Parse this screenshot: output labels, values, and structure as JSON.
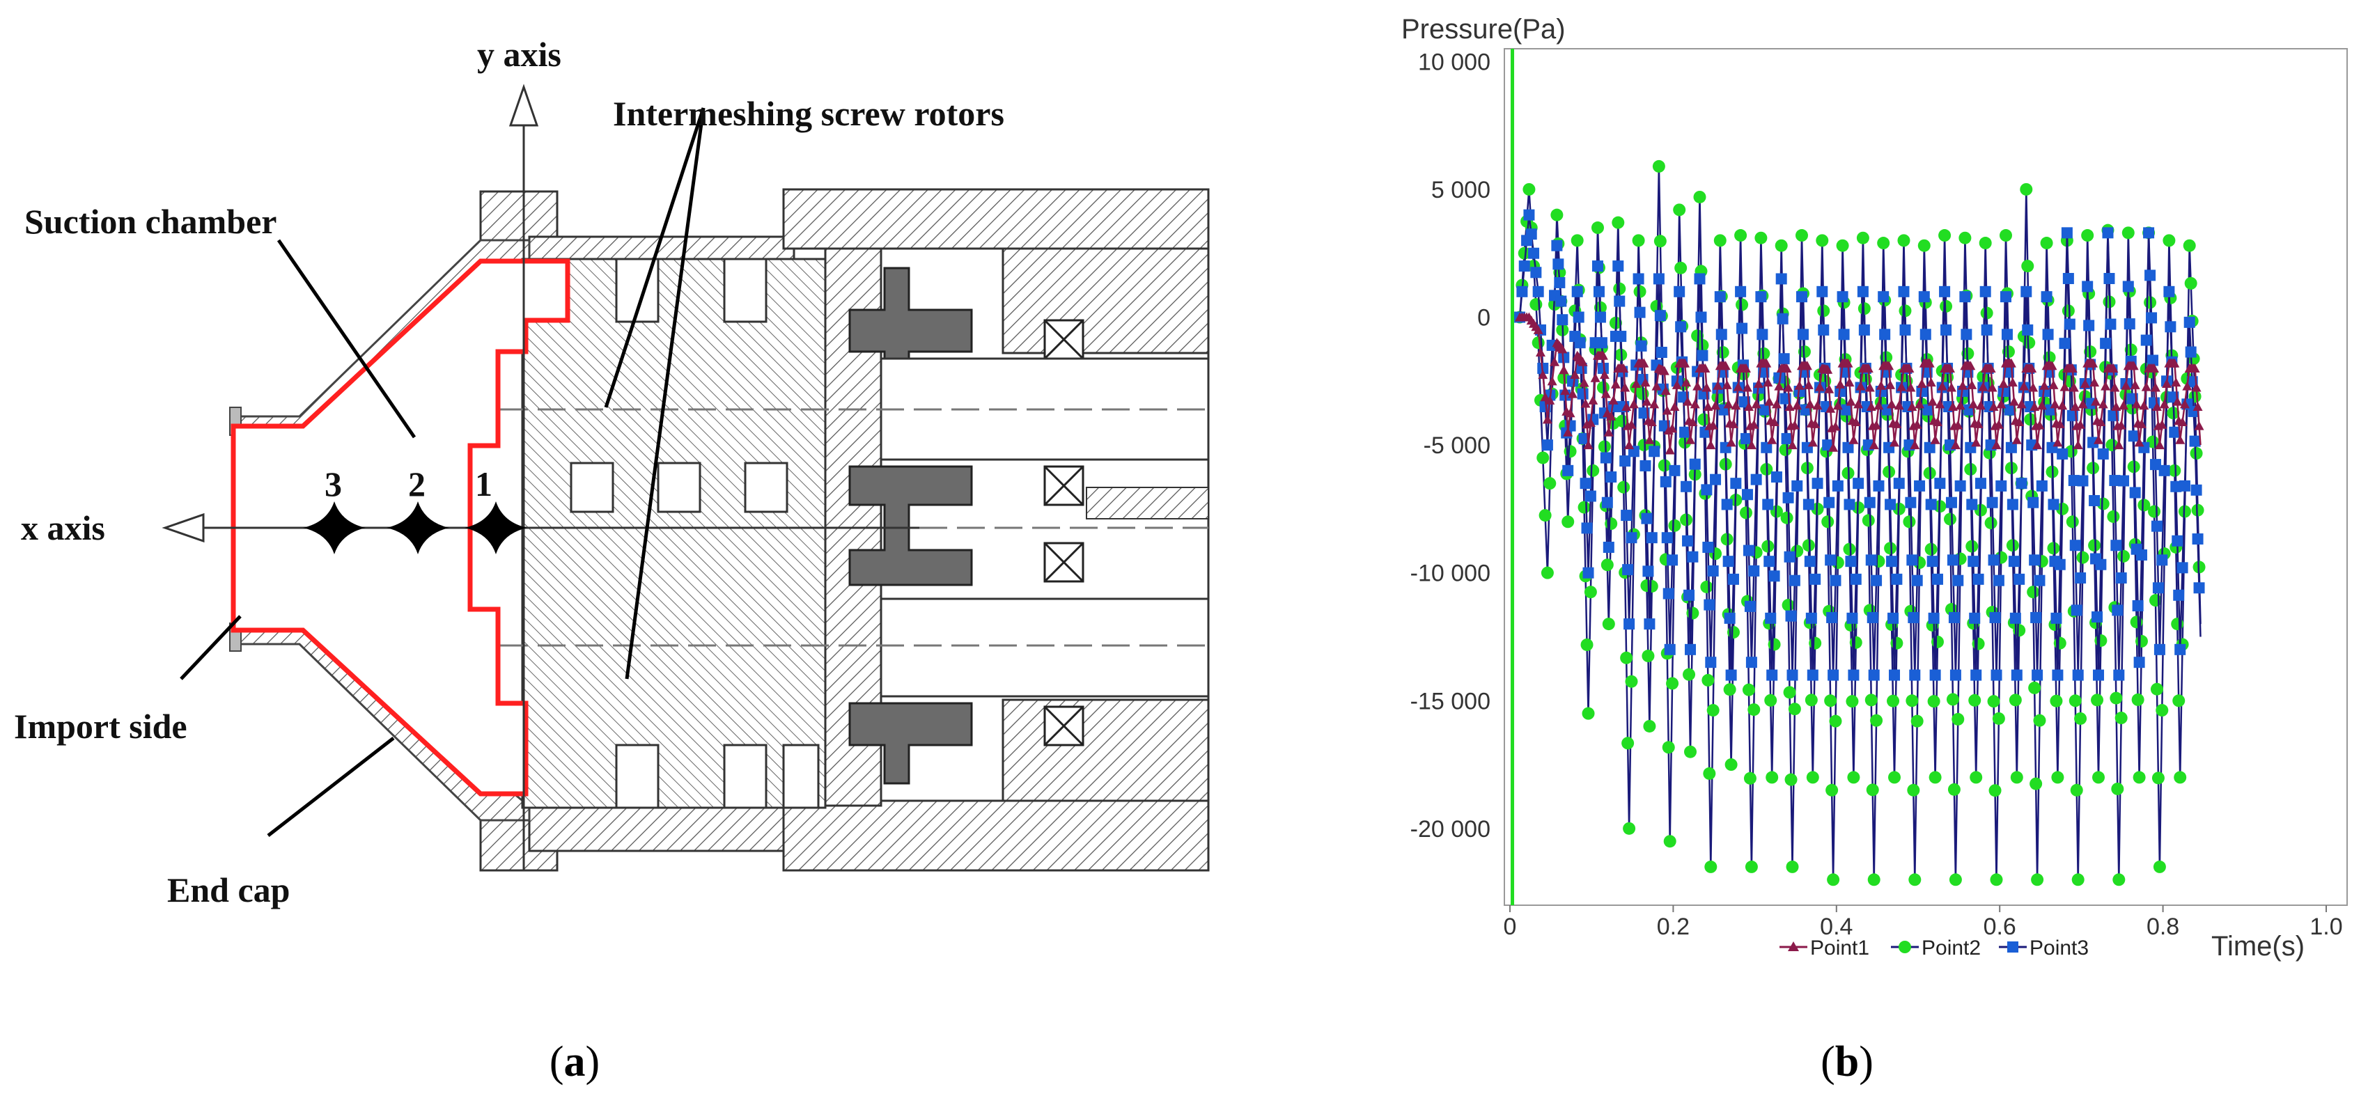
{
  "panel_a": {
    "caption_open": "(",
    "caption_letter": "a",
    "caption_close": ")",
    "labels": {
      "y_axis": "y axis",
      "x_axis": "x axis",
      "rotors": "Intermeshing screw rotors",
      "suction": "Suction chamber",
      "import": "Import side",
      "end_cap": "End cap"
    },
    "points": [
      "3",
      "2",
      "1"
    ]
  },
  "panel_b": {
    "caption_open": "(",
    "caption_letter": "b",
    "caption_close": ")"
  },
  "colors": {
    "outline_red": "#ff2020",
    "point1": "#8b1a4a",
    "point2": "#22dd22",
    "point3": "#1a5fd6",
    "navy": "#1a1a7a"
  },
  "chart_data": {
    "type": "line",
    "ylabel": "Pressure(Pa)",
    "xlabel": "Time(s)",
    "xlim": [
      0,
      1.0
    ],
    "ylim": [
      -23000,
      10500
    ],
    "xticks": [
      "0",
      "0.2",
      "0.4",
      "0.6",
      "0.8",
      "1.0"
    ],
    "yticks": [
      "10 000",
      "5 000",
      "0",
      "-5 000",
      "-10 000",
      "-15 000",
      "-20 000"
    ],
    "legend": [
      "Point1",
      "Point2",
      "Point3"
    ],
    "legend_position": "bottom",
    "cycle_x": [
      0.05,
      0.075,
      0.1,
      0.125,
      0.15,
      0.175,
      0.2,
      0.225,
      0.25,
      0.275,
      0.3,
      0.325,
      0.35,
      0.375,
      0.4,
      0.425,
      0.45,
      0.475,
      0.5,
      0.525,
      0.55,
      0.575,
      0.6,
      0.625,
      0.65,
      0.675,
      0.7,
      0.725,
      0.75,
      0.775,
      0.8,
      0.825,
      0.85
    ],
    "series": [
      {
        "name": "Point1",
        "min": [
          -4000,
          -4500,
          -5000,
          -4500,
          -5000,
          -4800,
          -5200,
          -4800,
          -5000,
          -4900,
          -5000,
          -4800,
          -5000,
          -4900,
          -5100,
          -4800,
          -5000,
          -4900,
          -5000,
          -4800,
          -5000,
          -4900,
          -5000,
          -4800,
          -5000,
          -4900,
          -5000,
          -4800,
          -5000,
          -4900,
          -5000,
          -4800,
          -5000
        ],
        "max": [
          0,
          -1000,
          -1500,
          -1500,
          -2000,
          -1800,
          -2000,
          -1800,
          -2000,
          -1900,
          -2000,
          -1800,
          -2000,
          -1900,
          -2000,
          -1800,
          -2000,
          -1900,
          -2000,
          -1800,
          -2000,
          -1900,
          -2000,
          -1800,
          -2000,
          -1900,
          -2000,
          -1800,
          -2000,
          -1900,
          -2000,
          -1800,
          -2000
        ]
      },
      {
        "name": "Point2",
        "min": [
          -10000,
          -8000,
          -15500,
          -12000,
          -20000,
          -16000,
          -20500,
          -17000,
          -21500,
          -17500,
          -21500,
          -18000,
          -21500,
          -18000,
          -22000,
          -18000,
          -22000,
          -18000,
          -22000,
          -18000,
          -22000,
          -18000,
          -22000,
          -18000,
          -22000,
          -18000,
          -22000,
          -18000,
          -22000,
          -18000,
          -21500,
          -18000,
          -12000
        ],
        "max": [
          5000,
          4000,
          3000,
          3500,
          3700,
          3000,
          5900,
          4200,
          4700,
          3000,
          3200,
          3100,
          2800,
          3200,
          3000,
          2800,
          3100,
          2900,
          3000,
          2800,
          3200,
          3100,
          2900,
          3200,
          5000,
          2900,
          3000,
          3200,
          3400,
          3300,
          3300,
          3000,
          2800
        ]
      },
      {
        "name": "Point3",
        "min": [
          -5000,
          -6000,
          -10000,
          -9000,
          -12000,
          -12000,
          -13000,
          -13000,
          -13500,
          -14000,
          -13500,
          -14000,
          -14000,
          -14000,
          -14000,
          -14000,
          -14000,
          -14000,
          -14000,
          -14000,
          -14000,
          -14000,
          -14000,
          -14000,
          -14000,
          -14000,
          -14000,
          -14000,
          -14000,
          -13500,
          -13000,
          -13000,
          -12500
        ],
        "max": [
          4000,
          2800,
          1000,
          2000,
          2000,
          1500,
          1500,
          1000,
          1500,
          800,
          1000,
          800,
          1500,
          800,
          1000,
          800,
          1000,
          800,
          1000,
          800,
          1000,
          800,
          1000,
          800,
          1000,
          800,
          3300,
          1200,
          3300,
          1200,
          3300,
          1000,
          -200
        ]
      }
    ]
  }
}
